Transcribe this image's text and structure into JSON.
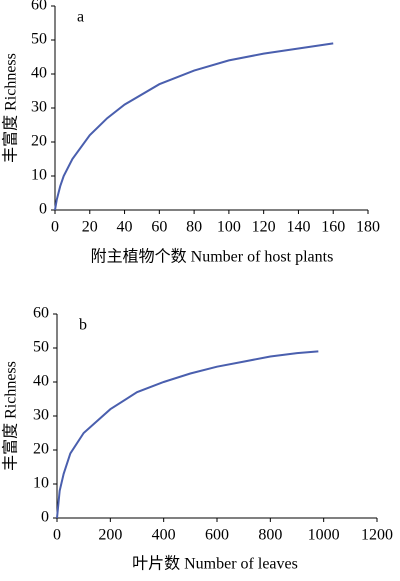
{
  "chart_data": [
    {
      "type": "line",
      "label": "a",
      "xlabel": "附主植物个数 Number of host plants",
      "ylabel": "丰富度 Richness",
      "x": [
        0,
        1,
        3,
        5,
        10,
        20,
        30,
        40,
        60,
        80,
        100,
        120,
        140,
        160
      ],
      "series": [
        {
          "color": "#4a5fae",
          "values": [
            0,
            3,
            7,
            10,
            15,
            22,
            27,
            31,
            37,
            41,
            44,
            46,
            47.5,
            49
          ]
        }
      ],
      "xlim": [
        0,
        180
      ],
      "xticks": [
        0,
        20,
        40,
        60,
        80,
        100,
        120,
        140,
        160,
        180
      ],
      "ylim": [
        0,
        60
      ],
      "yticks": [
        0,
        10,
        20,
        30,
        40,
        50,
        60
      ]
    },
    {
      "type": "line",
      "label": "b",
      "xlabel": "叶片数 Number of leaves",
      "ylabel": "丰富度 Richness",
      "x": [
        0,
        10,
        25,
        50,
        100,
        200,
        300,
        400,
        500,
        600,
        700,
        800,
        900,
        980
      ],
      "series": [
        {
          "color": "#4a5fae",
          "values": [
            0,
            8,
            13,
            19,
            25,
            32,
            37,
            40,
            42.5,
            44.5,
            46,
            47.5,
            48.5,
            49
          ]
        }
      ],
      "xlim": [
        0,
        1200
      ],
      "xticks": [
        0,
        200,
        400,
        600,
        800,
        1000,
        1200
      ],
      "ylim": [
        0,
        60
      ],
      "yticks": [
        0,
        10,
        20,
        30,
        40,
        50,
        60
      ]
    }
  ]
}
